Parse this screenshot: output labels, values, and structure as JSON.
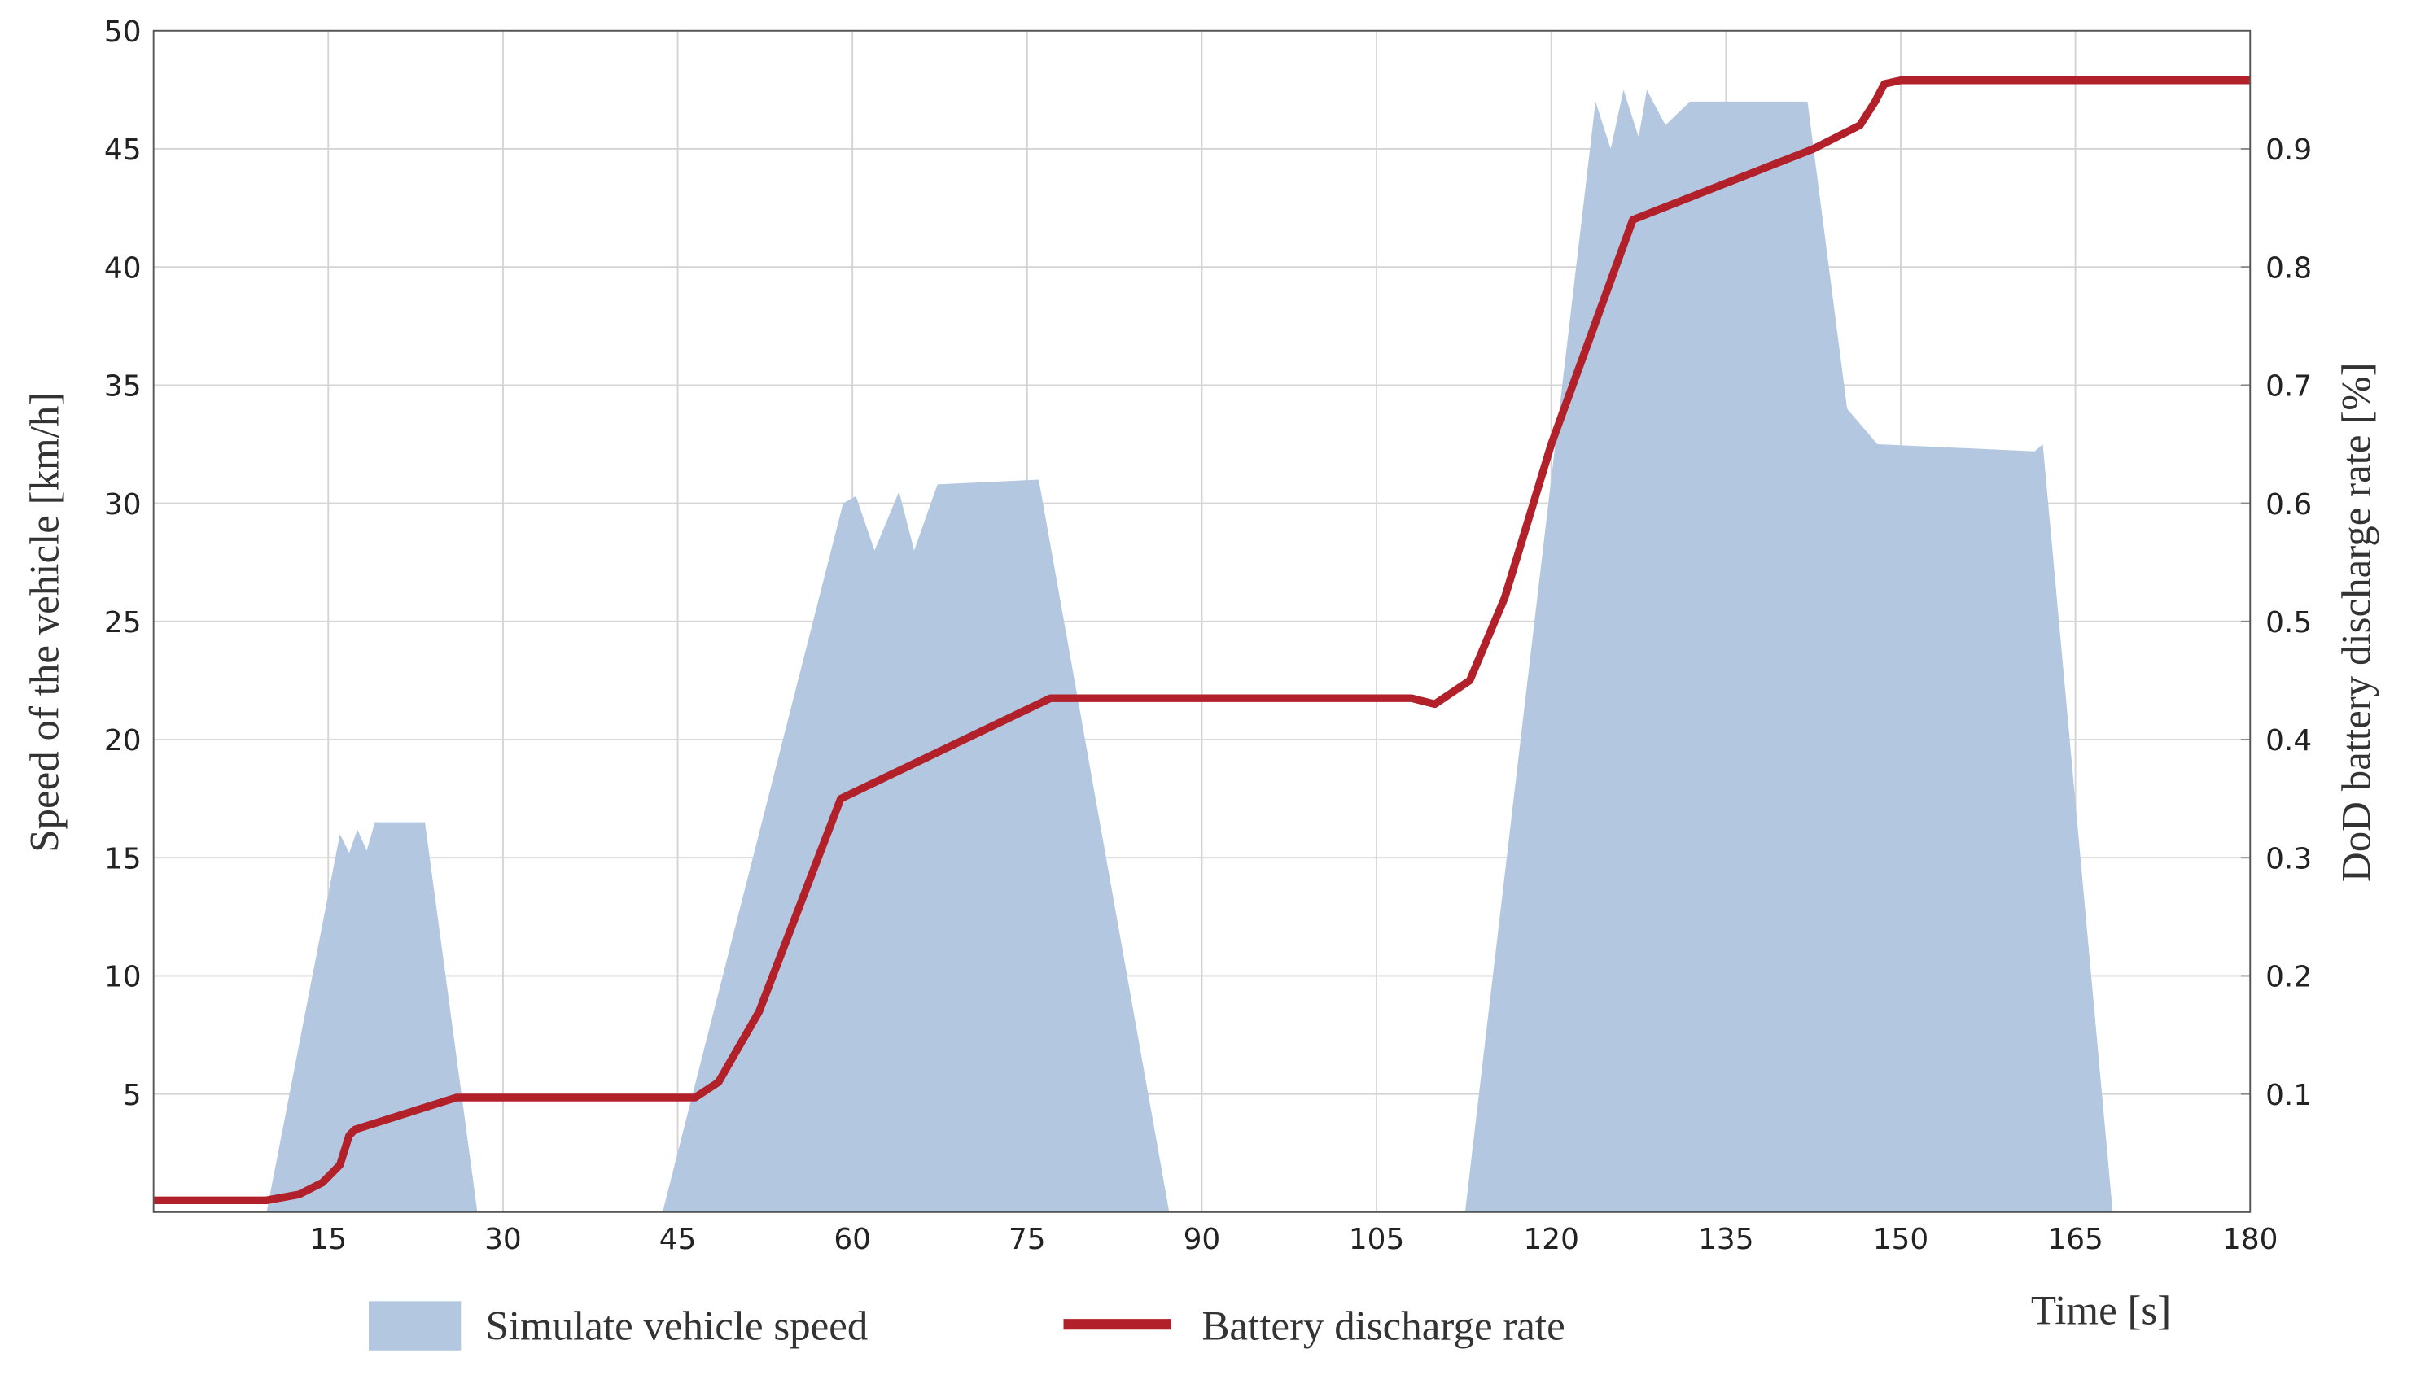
{
  "chart_data": {
    "type": "area-line",
    "xlabel": "Time [s]",
    "ylabel": "Speed of the vehicle  [km/h]",
    "y2label": "DoD battery discharge rate [%]",
    "xlim": [
      0,
      180
    ],
    "xticks": [
      15,
      30,
      45,
      60,
      75,
      90,
      105,
      120,
      135,
      150,
      165,
      180
    ],
    "ylim": [
      0,
      50
    ],
    "yticks": [
      5,
      10,
      15,
      20,
      25,
      30,
      35,
      40,
      45,
      50
    ],
    "y2lim": [
      0,
      1
    ],
    "y2ticks": [
      0.1,
      0.2,
      0.3,
      0.4,
      0.5,
      0.6,
      0.7,
      0.8,
      0.9
    ],
    "grid": true,
    "series": [
      {
        "name": "Simulate vehicle speed",
        "color": "#b4c7e0",
        "axis": "y",
        "x": [
          9.7,
          16,
          16.8,
          17.5,
          18.3,
          19,
          23.3,
          27.8,
          43.7,
          59.2,
          60.3,
          61.9,
          64,
          65.3,
          67.3,
          76,
          87.2,
          112.6,
          123.8,
          125.1,
          126.2,
          127.5,
          128.2,
          129.8,
          131.9,
          142,
          145.4,
          148,
          161.5,
          162.2,
          168.2
        ],
        "values": [
          0,
          16,
          15.2,
          16.2,
          15.3,
          16.5,
          16.5,
          0,
          0,
          30,
          30.3,
          28,
          30.5,
          28,
          30.8,
          31,
          0,
          0,
          47,
          45,
          47.5,
          45.5,
          47.5,
          46,
          47,
          47,
          34,
          32.5,
          32.2,
          32.5,
          0
        ]
      },
      {
        "name": "Battery discharge rate",
        "color": "#b2202a",
        "axis": "y2",
        "x": [
          0,
          9.7,
          12.5,
          14.5,
          16,
          16.8,
          17.3,
          26,
          46.5,
          48.5,
          52,
          59,
          77,
          108,
          110,
          113,
          116,
          120,
          127,
          142.5,
          146.5,
          147.8,
          148.6,
          150,
          180
        ],
        "values": [
          0.01,
          0.01,
          0.015,
          0.025,
          0.04,
          0.065,
          0.07,
          0.097,
          0.097,
          0.11,
          0.17,
          0.35,
          0.435,
          0.435,
          0.43,
          0.45,
          0.52,
          0.65,
          0.84,
          0.9,
          0.92,
          0.94,
          0.955,
          0.958,
          0.958
        ]
      }
    ]
  }
}
